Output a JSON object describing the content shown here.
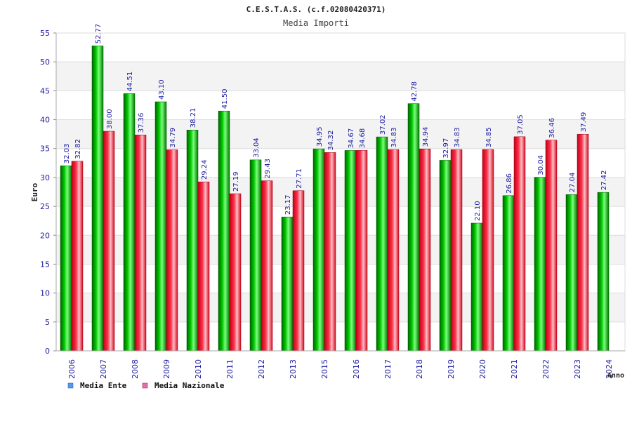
{
  "chart_data": {
    "type": "bar",
    "title": "C.E.S.T.A.S. (c.f.02080420371)",
    "subtitle": "Media Importi",
    "ylabel": "Euro",
    "xlabel": "Anno",
    "ylim": [
      0,
      55
    ],
    "yticks": [
      0,
      5,
      10,
      15,
      20,
      25,
      30,
      35,
      40,
      45,
      50,
      55
    ],
    "grid": true,
    "legend_position": "bottom-left",
    "categories": [
      "2006",
      "2007",
      "2008",
      "2009",
      "2010",
      "2011",
      "2012",
      "2013",
      "2015",
      "2016",
      "2017",
      "2018",
      "2019",
      "2020",
      "2021",
      "2022",
      "2023",
      "2024"
    ],
    "series": [
      {
        "name": "Media Ente",
        "color": "#00b400",
        "legend_color": "#5599ee",
        "values": [
          32.03,
          52.77,
          44.51,
          43.1,
          38.21,
          41.5,
          33.04,
          23.17,
          34.95,
          34.67,
          37.02,
          42.78,
          32.97,
          22.1,
          26.86,
          30.04,
          27.04,
          27.42
        ],
        "labels": [
          "32.03",
          "52.77",
          "44.51",
          "43.10",
          "38.21",
          "41.50",
          "33.04",
          "23.17",
          "34.95",
          "34.67",
          "37.02",
          "42.78",
          "32.97",
          "22.10",
          "26.86",
          "30.04",
          "27.04",
          "27.42"
        ]
      },
      {
        "name": "Media Nazionale",
        "color": "#e8102a",
        "legend_color": "#e070a8",
        "values": [
          32.82,
          38.0,
          37.36,
          34.79,
          29.24,
          27.19,
          29.43,
          27.71,
          34.32,
          34.68,
          34.83,
          34.94,
          34.83,
          34.85,
          37.05,
          36.46,
          37.49,
          null
        ],
        "labels": [
          "32.82",
          "38.00",
          "37.36",
          "34.79",
          "29.24",
          "27.19",
          "29.43",
          "27.71",
          "34.32",
          "34.68",
          "34.83",
          "34.94",
          "34.83",
          "34.85",
          "37.05",
          "36.46",
          "37.49",
          null
        ]
      }
    ]
  }
}
